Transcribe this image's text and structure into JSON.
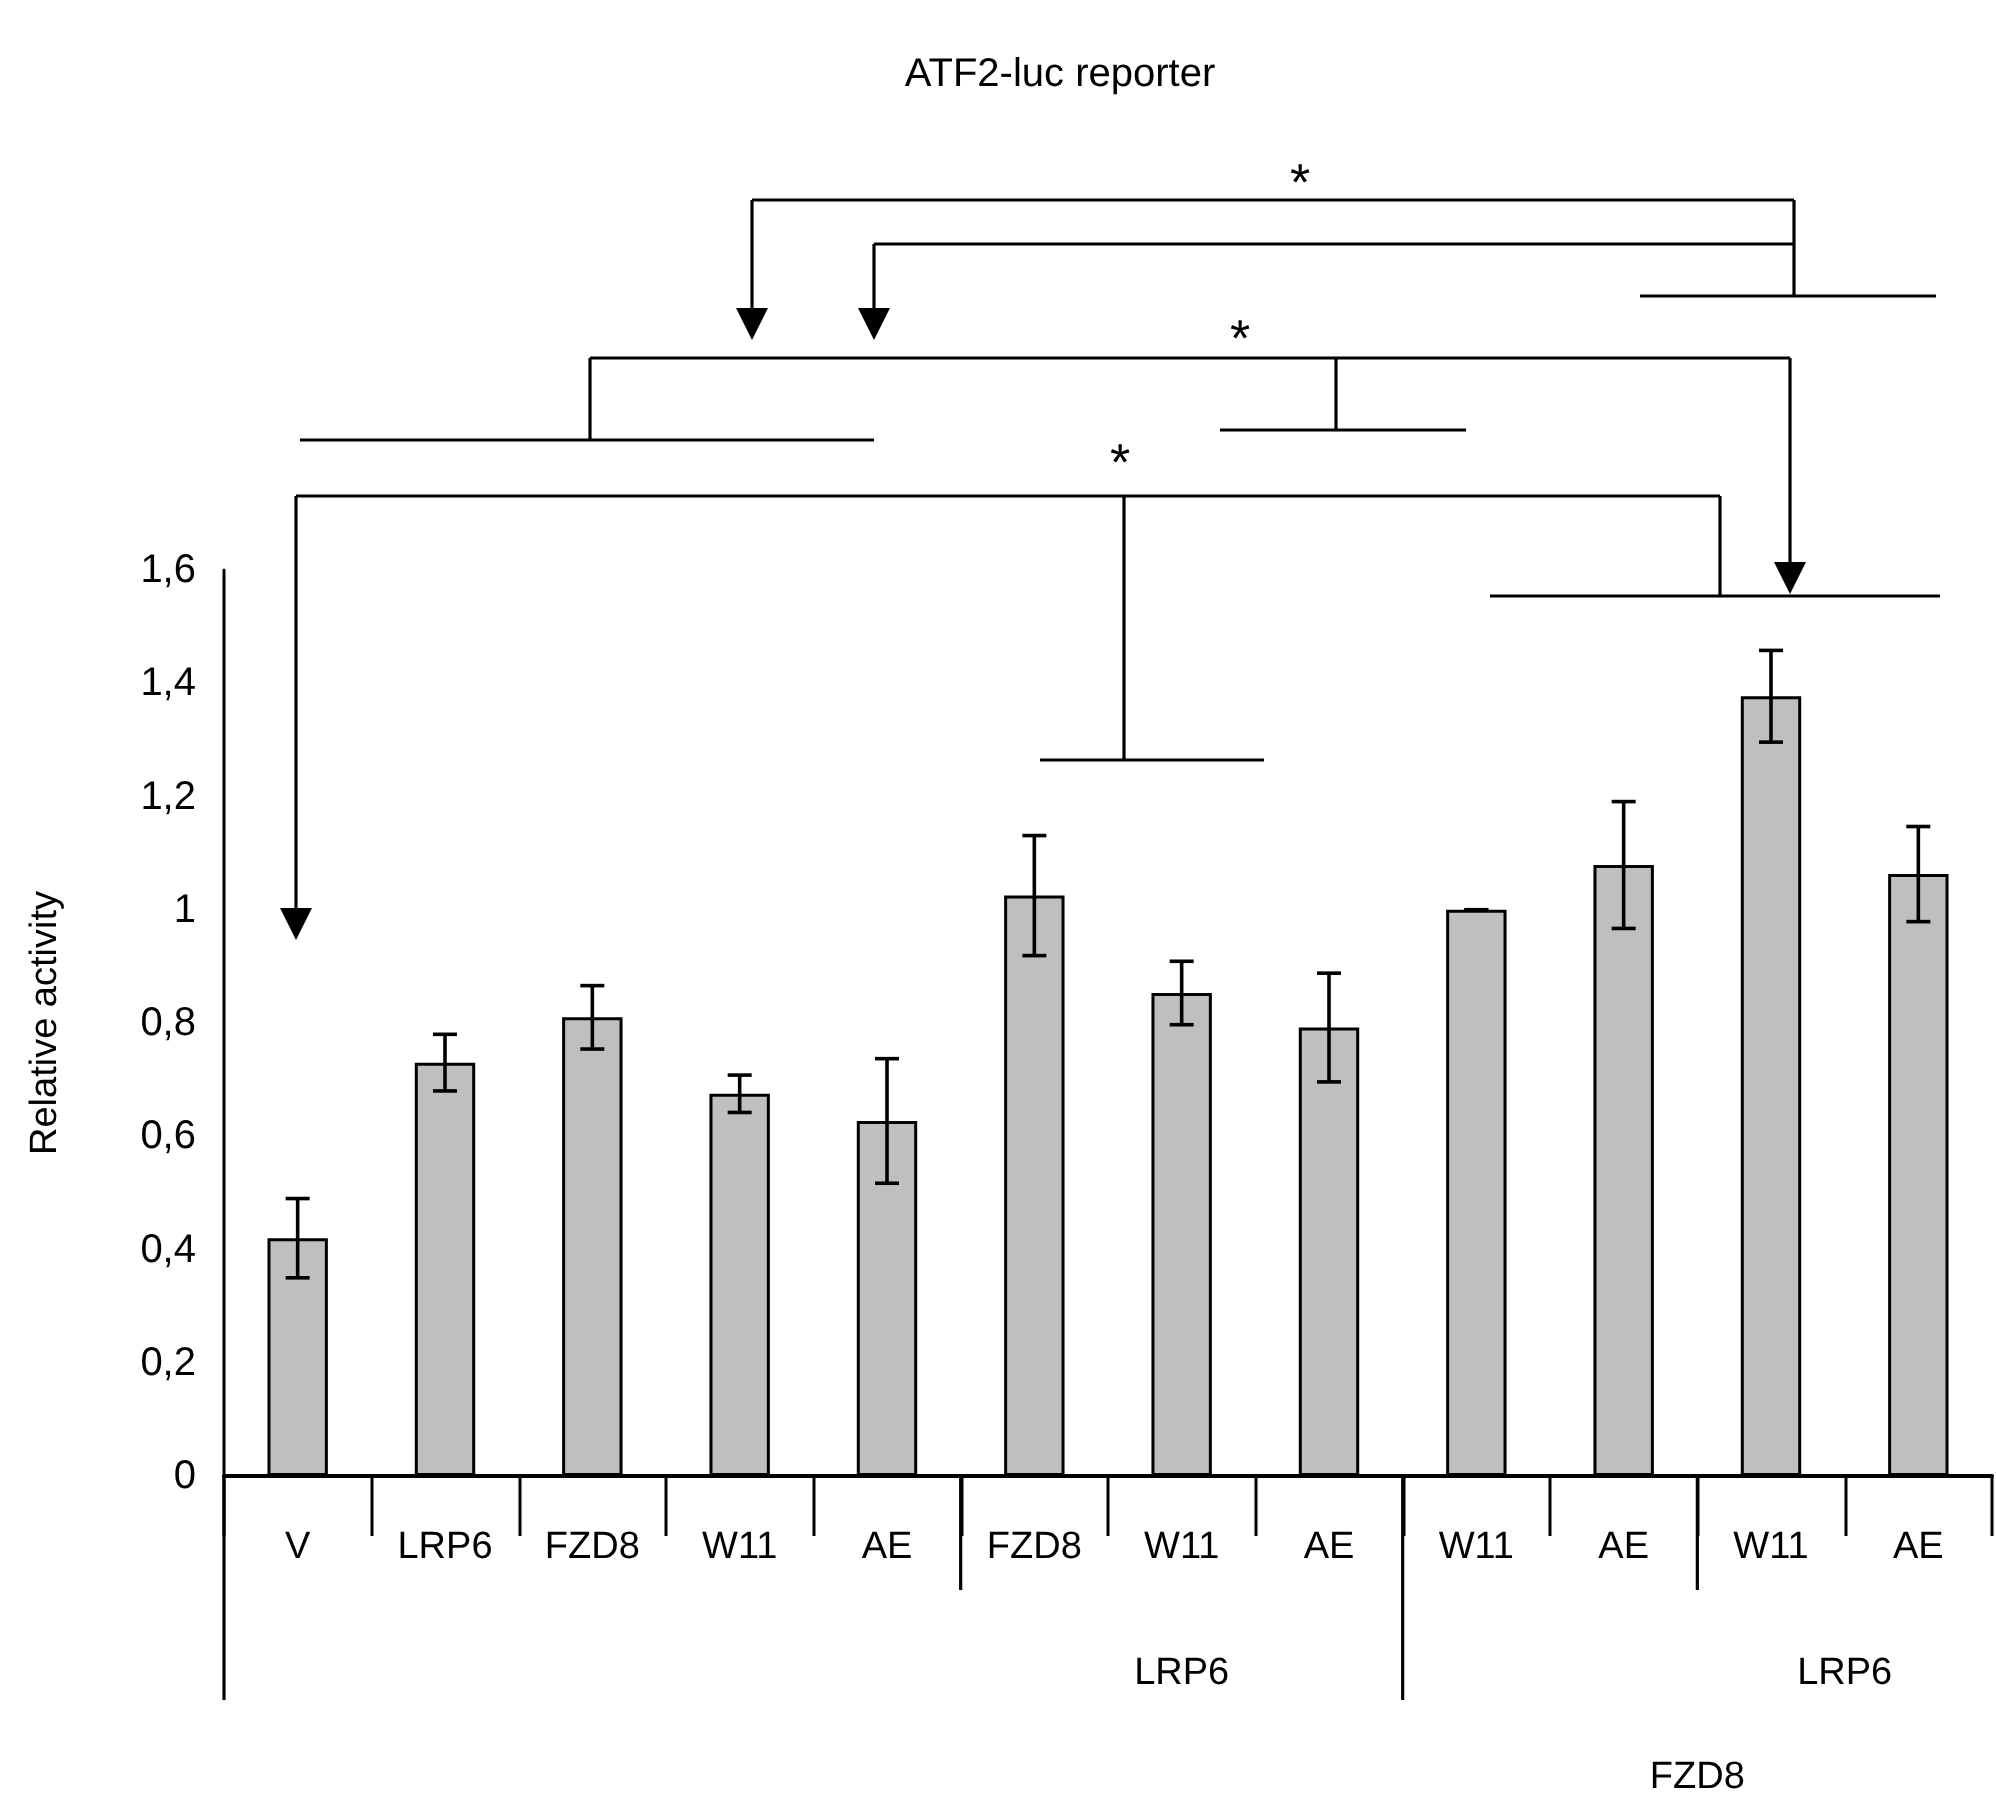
{
  "chart_data": {
    "type": "bar",
    "title": "ATF2-luc reporter",
    "ylabel": "Relative activity",
    "categories": [
      "V",
      "LRP6",
      "FZD8",
      "W11",
      "AE",
      "FZD8",
      "W11",
      "AE",
      "W11",
      "AE",
      "W11",
      "AE"
    ],
    "values": [
      0.42,
      0.73,
      0.81,
      0.675,
      0.627,
      1.025,
      0.853,
      0.792,
      1.0,
      1.079,
      1.377,
      1.063
    ],
    "errors": [
      0.07,
      0.05,
      0.056,
      0.033,
      0.11,
      0.106,
      0.056,
      0.096,
      0,
      0.112,
      0.081,
      0.084
    ],
    "color": "#bfbfbf",
    "ylim": [
      0,
      1.6
    ],
    "yticks": [
      0,
      {
        "value": 0.2,
        "label": "0,2"
      },
      {
        "value": 0.4,
        "label": "0,4"
      },
      {
        "value": 0.6,
        "label": "0,6"
      },
      {
        "value": 0.8,
        "label": "0,8"
      },
      1,
      {
        "value": 1.2,
        "label": "1,2"
      },
      {
        "value": 1.4,
        "label": "1,4"
      },
      {
        "value": 1.6,
        "label": "1,6"
      }
    ],
    "grid": false,
    "annotations": [
      "*",
      "*",
      "*",
      "LRP6",
      "LRP6",
      "FZD8"
    ]
  }
}
